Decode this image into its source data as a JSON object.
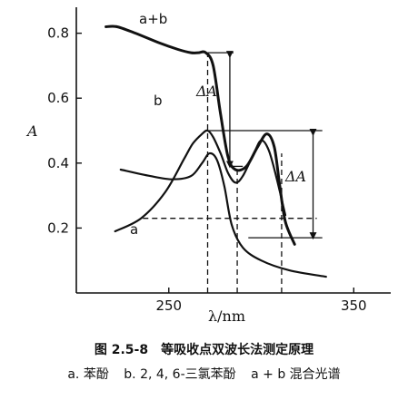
{
  "chart_data": {
    "type": "line",
    "title": "",
    "xlabel": "λ/nm",
    "ylabel": "A",
    "xlim": [
      200,
      370
    ],
    "ylim": [
      0.0,
      0.88
    ],
    "x_ticks": [
      250,
      350
    ],
    "y_ticks": [
      0.2,
      0.4,
      0.6,
      0.8
    ],
    "x_tick_labels": [
      "250",
      "350"
    ],
    "y_tick_labels": [
      "0.2",
      "0.4",
      "0.6",
      "0.8"
    ],
    "grid": false,
    "series": [
      {
        "name": "a",
        "x": [
          221,
          235,
          248,
          258,
          263,
          268,
          271,
          274,
          278,
          282,
          286,
          290,
          296,
          300,
          304,
          308,
          313
        ],
        "y": [
          0.19,
          0.23,
          0.31,
          0.41,
          0.46,
          0.49,
          0.5,
          0.48,
          0.43,
          0.37,
          0.34,
          0.36,
          0.43,
          0.47,
          0.44,
          0.36,
          0.24
        ]
      },
      {
        "name": "b",
        "x": [
          224,
          240,
          252,
          262,
          268,
          272,
          276,
          280,
          284,
          290,
          300,
          315,
          335
        ],
        "y": [
          0.38,
          0.36,
          0.35,
          0.36,
          0.4,
          0.43,
          0.41,
          0.33,
          0.21,
          0.14,
          0.1,
          0.07,
          0.05
        ]
      },
      {
        "name": "a+b",
        "x": [
          216,
          222,
          232,
          245,
          255,
          262,
          266,
          270,
          274,
          278,
          282,
          286,
          292,
          298,
          303,
          307,
          310,
          313,
          318
        ],
        "y": [
          0.82,
          0.82,
          0.8,
          0.77,
          0.75,
          0.74,
          0.74,
          0.74,
          0.7,
          0.55,
          0.42,
          0.38,
          0.39,
          0.45,
          0.49,
          0.45,
          0.33,
          0.22,
          0.15
        ]
      }
    ],
    "annotations": [
      "ΔA",
      "ΔA"
    ],
    "wavelengths": [
      {
        "lambda": 271,
        "line": "dashed"
      },
      {
        "lambda": 287,
        "line": "dashed"
      },
      {
        "lambda": 311,
        "line": "dashed"
      }
    ],
    "reference_levels": {
      "a_plus_b_at_lambda1": 0.74,
      "a_plus_b_at_lambda2": 0.39,
      "a_at_lambda1": 0.5,
      "a_at_lambda3": 0.17,
      "b_isoabsorptive": 0.23
    }
  },
  "labels": {
    "curve_a": "a",
    "curve_b": "b",
    "curve_ab": "a+b",
    "delta_a_upper": "ΔA",
    "delta_a_lower": "ΔA"
  },
  "caption": {
    "title": "图 2.5-8　等吸收点双波长法测定原理",
    "legend_a": "a. 苯酚",
    "legend_b": "b. 2, 4, 6-三氯苯酚",
    "legend_ab": "a + b 混合光谱"
  }
}
